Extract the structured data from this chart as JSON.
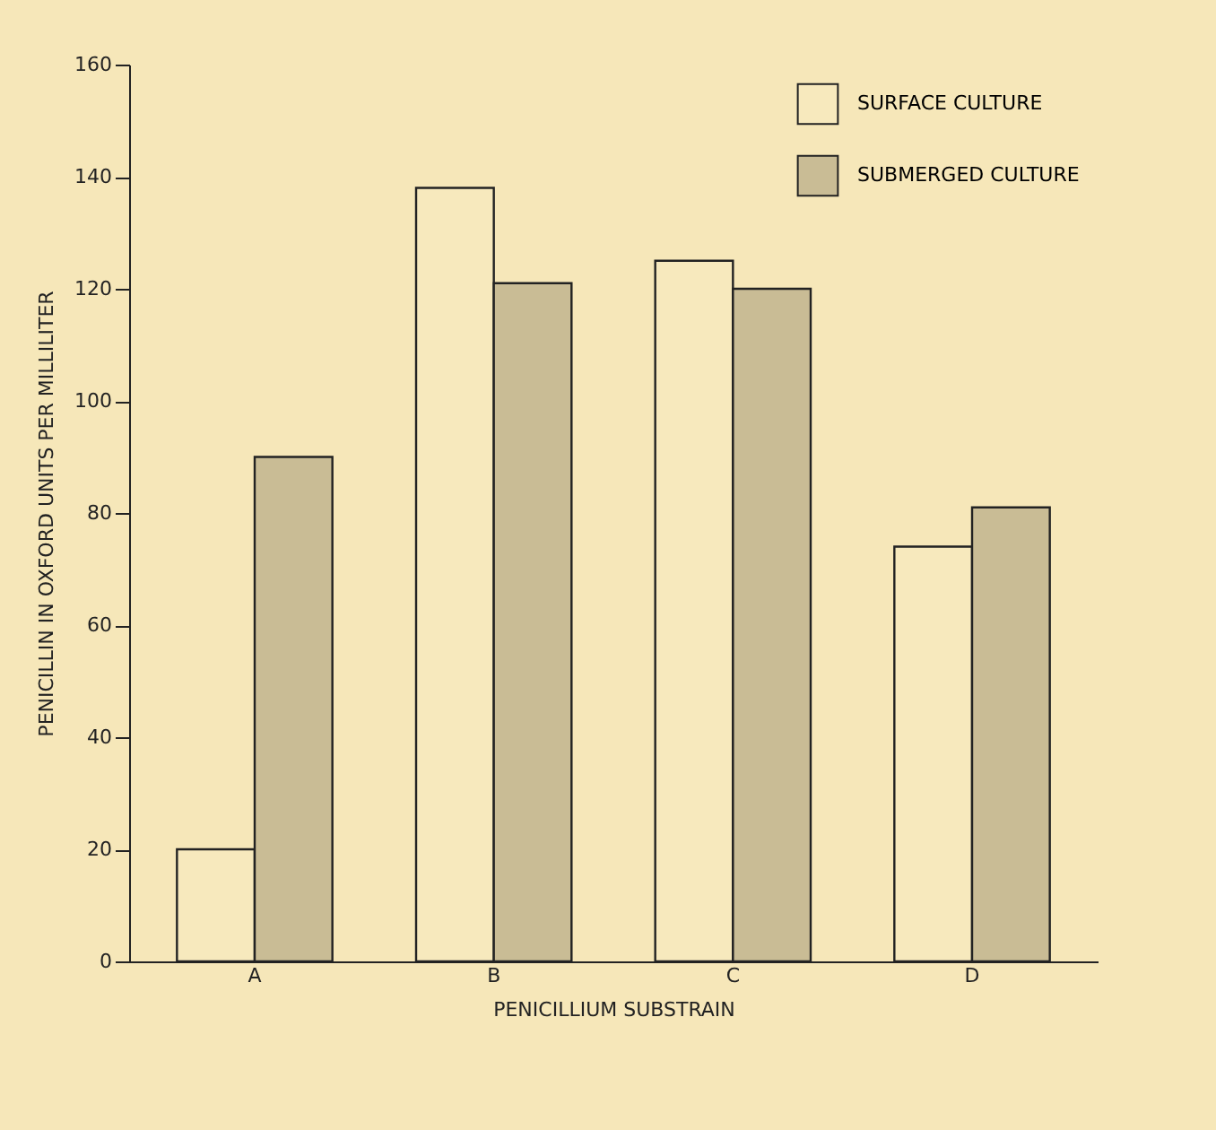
{
  "chart_data": {
    "type": "bar",
    "xlabel": "PENICILLIUM SUBSTRAIN",
    "ylabel": "PENICILLIN IN OXFORD UNITS PER MILLILITER",
    "categories": [
      "A",
      "B",
      "C",
      "D"
    ],
    "series": [
      {
        "name": "SURFACE CULTURE",
        "color": "#f7e9bd",
        "values": [
          20,
          138,
          125,
          74
        ]
      },
      {
        "name": "SUBMERGED CULTURE",
        "color": "#c9bc95",
        "values": [
          90,
          121,
          120,
          81
        ]
      }
    ],
    "ylim": [
      0,
      160
    ],
    "yticks": [
      0,
      20,
      40,
      60,
      80,
      100,
      120,
      140,
      160
    ],
    "grid": false,
    "legend": "top right"
  }
}
